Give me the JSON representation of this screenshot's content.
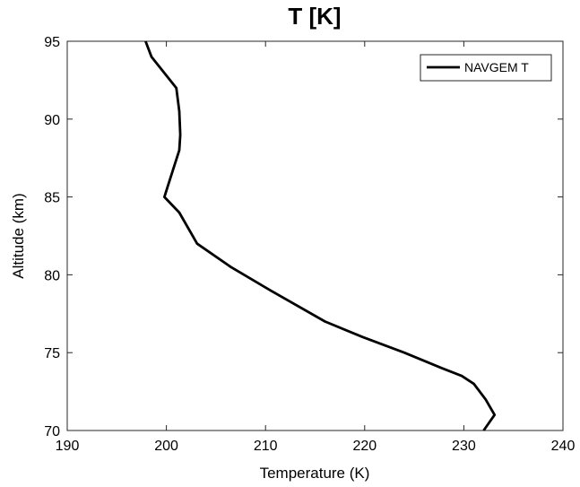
{
  "chart_data": {
    "type": "line",
    "title": "T [K]",
    "xlabel": "Temperature (K)",
    "ylabel": "Altitude (km)",
    "xlim": [
      190,
      240
    ],
    "ylim": [
      70,
      95
    ],
    "xticks": [
      "190",
      "200",
      "210",
      "220",
      "230",
      "240"
    ],
    "yticks": [
      "70",
      "75",
      "80",
      "85",
      "90",
      "95"
    ],
    "grid": false,
    "legend_position": "top-right",
    "series": [
      {
        "name": "NAVGEM T",
        "color": "#000000",
        "x": [
          232.0,
          233.1,
          232.2,
          231.0,
          229.8,
          227.8,
          224.0,
          219.8,
          216.0,
          210.5,
          206.5,
          203.1,
          201.3,
          199.8,
          200.3,
          201.3,
          201.4,
          201.3,
          201.0,
          198.5,
          197.9
        ],
        "y": [
          70,
          71,
          72,
          73,
          73.5,
          74,
          75,
          76,
          77,
          79,
          80.5,
          82,
          84,
          85,
          86,
          88,
          89,
          90.5,
          92,
          94,
          95
        ]
      }
    ]
  }
}
